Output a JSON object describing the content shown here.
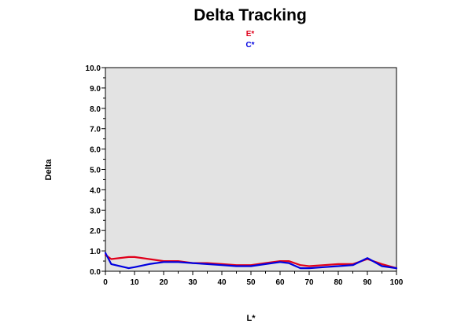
{
  "chart_data": {
    "type": "line",
    "title": "Delta Tracking",
    "xlabel": "L*",
    "ylabel": "Delta",
    "xlim": [
      0,
      100
    ],
    "ylim": [
      0,
      10
    ],
    "xticks": [
      "0",
      "10",
      "20",
      "30",
      "40",
      "50",
      "60",
      "70",
      "80",
      "90",
      "100"
    ],
    "yticks": [
      "0.0",
      "1.0",
      "2.0",
      "3.0",
      "4.0",
      "5.0",
      "6.0",
      "7.0",
      "8.0",
      "9.0",
      "10.0"
    ],
    "grid": false,
    "legend_position": "top",
    "series": [
      {
        "name": "E*",
        "color": "#e0001b",
        "x": [
          0,
          2,
          8,
          10,
          15,
          20,
          25,
          30,
          35,
          40,
          45,
          50,
          55,
          60,
          63,
          67,
          70,
          75,
          80,
          85,
          90,
          95,
          100
        ],
        "y": [
          0.8,
          0.6,
          0.7,
          0.7,
          0.6,
          0.5,
          0.5,
          0.4,
          0.4,
          0.35,
          0.3,
          0.3,
          0.4,
          0.5,
          0.5,
          0.3,
          0.25,
          0.3,
          0.35,
          0.35,
          0.6,
          0.35,
          0.15
        ]
      },
      {
        "name": "C*",
        "color": "#0000e0",
        "x": [
          0,
          2,
          8,
          10,
          15,
          20,
          25,
          30,
          35,
          40,
          45,
          50,
          55,
          60,
          63,
          67,
          70,
          75,
          80,
          85,
          90,
          95,
          100
        ],
        "y": [
          0.9,
          0.35,
          0.15,
          0.2,
          0.35,
          0.45,
          0.45,
          0.4,
          0.35,
          0.3,
          0.25,
          0.25,
          0.35,
          0.45,
          0.4,
          0.15,
          0.15,
          0.2,
          0.25,
          0.3,
          0.65,
          0.25,
          0.15
        ]
      }
    ]
  }
}
